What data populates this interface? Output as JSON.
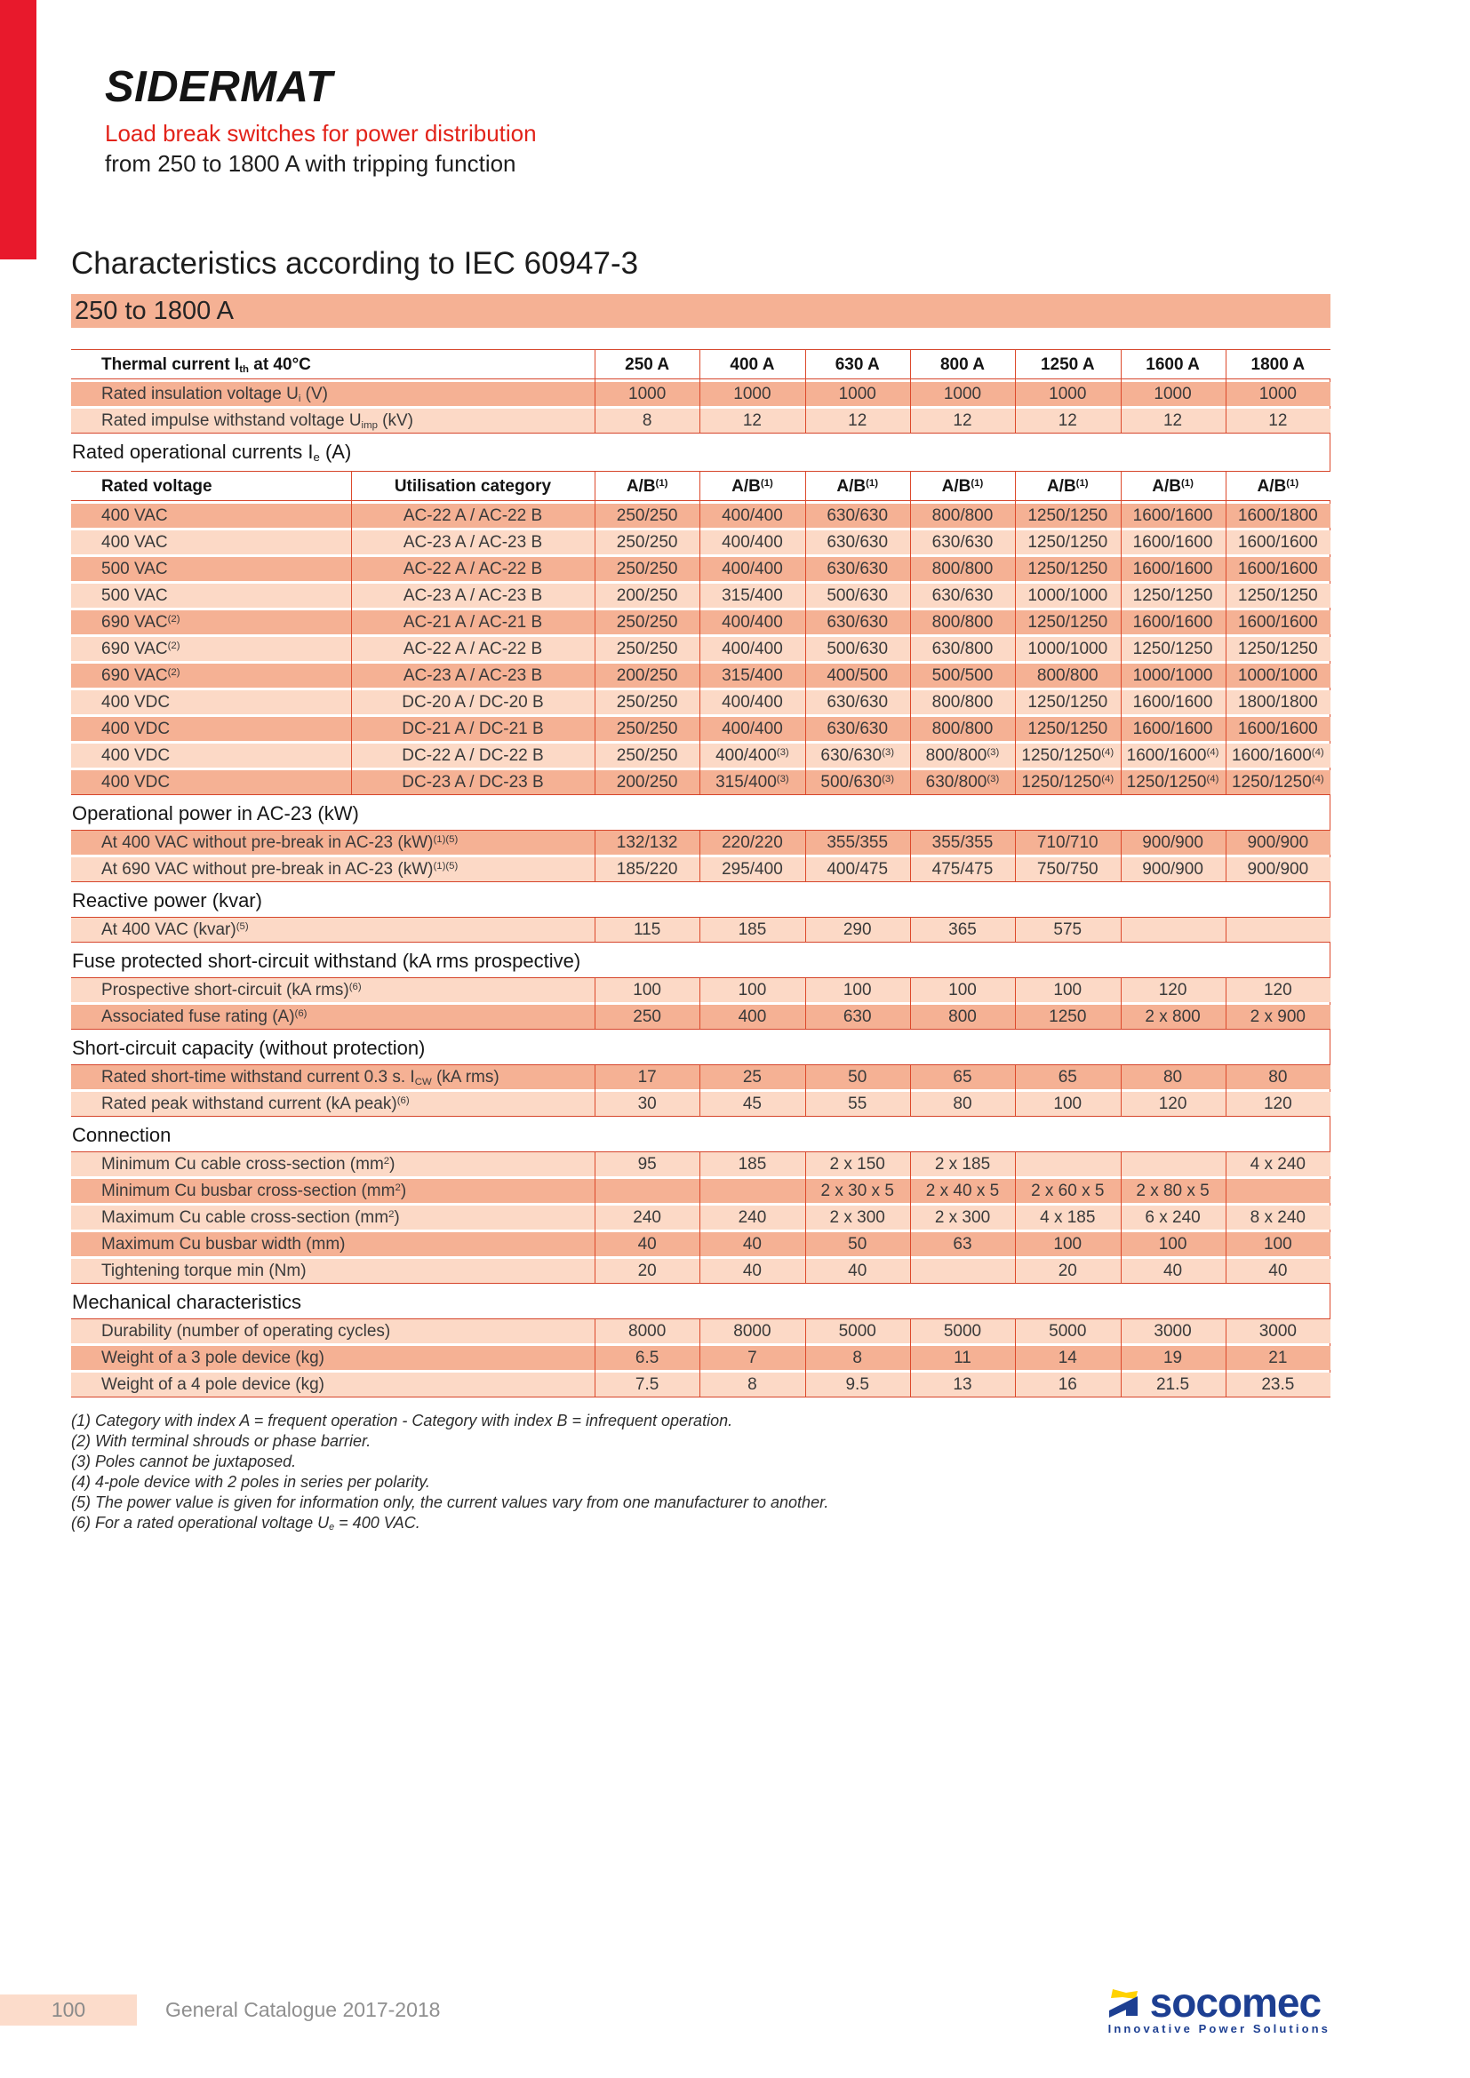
{
  "header": {
    "brand": "SIDERMAT",
    "tagline_red": "Load break switches for power distribution",
    "tagline_black": "from 250 to 1800 A with tripping function"
  },
  "title": "Characteristics according to IEC 60947-3",
  "range_banner": "250 to 1800 A",
  "colors": {
    "accent_red": "#e8192c",
    "text_red": "#e2231a",
    "row_dark": "#f5b194",
    "row_light": "#fcd9c6",
    "table_line_red": "#dd4a2c",
    "footer_pink": "#fcdccb",
    "footer_text_gray": "#8a8a8a",
    "logo_blue": "#1d3f92",
    "logo_yellow": "#ffd200"
  },
  "table": {
    "blocks": [
      {
        "heading_html": null,
        "two_label_cols": false,
        "head_row": {
          "label_html": "Thermal current I<sub>th</sub> at 40°C",
          "values": [
            "250 A",
            "400 A",
            "630 A",
            "800 A",
            "1250 A",
            "1600 A",
            "1800 A"
          ]
        },
        "rows": [
          {
            "shade": "dark",
            "label_html": "Rated insulation voltage U<sub>i</sub> (V)",
            "values": [
              "1000",
              "1000",
              "1000",
              "1000",
              "1000",
              "1000",
              "1000"
            ]
          },
          {
            "shade": "light",
            "label_html": "Rated impulse withstand voltage U<sub>imp</sub> (kV)",
            "values": [
              "8",
              "12",
              "12",
              "12",
              "12",
              "12",
              "12"
            ]
          }
        ]
      },
      {
        "heading_html": "Rated operational currents I<sub>e</sub> (A)",
        "two_label_cols": true,
        "head_row": {
          "label_html": "Rated voltage",
          "label2_html": "Utilisation category",
          "values": [
            "A/B<sup>(1)</sup>",
            "A/B<sup>(1)</sup>",
            "A/B<sup>(1)</sup>",
            "A/B<sup>(1)</sup>",
            "A/B<sup>(1)</sup>",
            "A/B<sup>(1)</sup>",
            "A/B<sup>(1)</sup>"
          ]
        },
        "rows": [
          {
            "shade": "dark",
            "label_html": "400 VAC",
            "label2_html": "AC-22 A / AC-22 B",
            "values": [
              "250/250",
              "400/400",
              "630/630",
              "800/800",
              "1250/1250",
              "1600/1600",
              "1600/1800"
            ]
          },
          {
            "shade": "light",
            "label_html": "400 VAC",
            "label2_html": "AC-23 A / AC-23 B",
            "values": [
              "250/250",
              "400/400",
              "630/630",
              "630/630",
              "1250/1250",
              "1600/1600",
              "1600/1600"
            ]
          },
          {
            "shade": "dark",
            "label_html": "500 VAC",
            "label2_html": "AC-22 A / AC-22 B",
            "values": [
              "250/250",
              "400/400",
              "630/630",
              "800/800",
              "1250/1250",
              "1600/1600",
              "1600/1600"
            ]
          },
          {
            "shade": "light",
            "label_html": "500 VAC",
            "label2_html": "AC-23 A / AC-23 B",
            "values": [
              "200/250",
              "315/400",
              "500/630",
              "630/630",
              "1000/1000",
              "1250/1250",
              "1250/1250"
            ]
          },
          {
            "shade": "dark",
            "label_html": "690 VAC<sup>(2)</sup>",
            "label2_html": "AC-21 A / AC-21 B",
            "values": [
              "250/250",
              "400/400",
              "630/630",
              "800/800",
              "1250/1250",
              "1600/1600",
              "1600/1600"
            ]
          },
          {
            "shade": "light",
            "label_html": "690 VAC<sup>(2)</sup>",
            "label2_html": "AC-22 A / AC-22 B",
            "values": [
              "250/250",
              "400/400",
              "500/630",
              "630/800",
              "1000/1000",
              "1250/1250",
              "1250/1250"
            ]
          },
          {
            "shade": "dark",
            "label_html": "690 VAC<sup>(2)</sup>",
            "label2_html": "AC-23 A / AC-23 B",
            "values": [
              "200/250",
              "315/400",
              "400/500",
              "500/500",
              "800/800",
              "1000/1000",
              "1000/1000"
            ]
          },
          {
            "shade": "light",
            "label_html": "400 VDC",
            "label2_html": "DC-20 A / DC-20 B",
            "values": [
              "250/250",
              "400/400",
              "630/630",
              "800/800",
              "1250/1250",
              "1600/1600",
              "1800/1800"
            ]
          },
          {
            "shade": "dark",
            "label_html": "400 VDC",
            "label2_html": "DC-21 A / DC-21 B",
            "values": [
              "250/250",
              "400/400",
              "630/630",
              "800/800",
              "1250/1250",
              "1600/1600",
              "1600/1600"
            ]
          },
          {
            "shade": "light",
            "label_html": "400 VDC",
            "label2_html": "DC-22 A / DC-22 B",
            "values": [
              "250/250",
              "400/400<sup>(3)</sup>",
              "630/630<sup>(3)</sup>",
              "800/800<sup>(3)</sup>",
              "1250/1250<sup>(4)</sup>",
              "1600/1600<sup>(4)</sup>",
              "1600/1600<sup>(4)</sup>"
            ]
          },
          {
            "shade": "dark",
            "label_html": "400 VDC",
            "label2_html": "DC-23 A / DC-23 B",
            "values": [
              "200/250",
              "315/400<sup>(3)</sup>",
              "500/630<sup>(3)</sup>",
              "630/800<sup>(3)</sup>",
              "1250/1250<sup>(4)</sup>",
              "1250/1250<sup>(4)</sup>",
              "1250/1250<sup>(4)</sup>"
            ]
          }
        ]
      },
      {
        "heading_html": "Operational power in AC-23 (kW)",
        "two_label_cols": false,
        "rows": [
          {
            "shade": "dark",
            "label_html": "At 400 VAC without pre-break in AC-23 (kW)<sup>(1)(5)</sup>",
            "values": [
              "132/132",
              "220/220",
              "355/355",
              "355/355",
              "710/710",
              "900/900",
              "900/900"
            ]
          },
          {
            "shade": "light",
            "label_html": "At 690 VAC without pre-break in AC-23 (kW)<sup>(1)(5)</sup>",
            "values": [
              "185/220",
              "295/400",
              "400/475",
              "475/475",
              "750/750",
              "900/900",
              "900/900"
            ]
          }
        ]
      },
      {
        "heading_html": "Reactive power (kvar)",
        "two_label_cols": false,
        "rows": [
          {
            "shade": "light",
            "label_html": "At 400 VAC (kvar)<sup>(5)</sup>",
            "values": [
              "115",
              "185",
              "290",
              "365",
              "575",
              "",
              ""
            ]
          }
        ]
      },
      {
        "heading_html": "Fuse protected short-circuit withstand (kA rms prospective)",
        "two_label_cols": false,
        "rows": [
          {
            "shade": "light",
            "label_html": "Prospective short-circuit (kA rms)<sup>(6)</sup>",
            "values": [
              "100",
              "100",
              "100",
              "100",
              "100",
              "120",
              "120"
            ]
          },
          {
            "shade": "dark",
            "label_html": "Associated fuse rating (A)<sup>(6)</sup>",
            "values": [
              "250",
              "400",
              "630",
              "800",
              "1250",
              "2 x 800",
              "2 x 900"
            ]
          }
        ]
      },
      {
        "heading_html": "Short-circuit capacity (without protection)",
        "two_label_cols": false,
        "rows": [
          {
            "shade": "dark",
            "label_html": "Rated short-time withstand current 0.3 s. I<sub>CW</sub> (kA rms)",
            "values": [
              "17",
              "25",
              "50",
              "65",
              "65",
              "80",
              "80"
            ]
          },
          {
            "shade": "light",
            "label_html": "Rated peak withstand current (kA peak)<sup>(6)</sup>",
            "values": [
              "30",
              "45",
              "55",
              "80",
              "100",
              "120",
              "120"
            ]
          }
        ]
      },
      {
        "heading_html": "Connection",
        "two_label_cols": false,
        "rows": [
          {
            "shade": "light",
            "label_html": "Minimum Cu cable cross-section (mm<sup>2</sup>)",
            "values": [
              "95",
              "185",
              "2 x 150",
              "2 x 185",
              "",
              "",
              "4 x 240"
            ]
          },
          {
            "shade": "dark",
            "label_html": "Minimum Cu busbar cross-section (mm<sup>2</sup>)",
            "values": [
              "",
              "",
              "2 x 30 x 5",
              "2 x 40 x 5",
              "2 x 60 x 5",
              "2 x 80 x 5",
              ""
            ]
          },
          {
            "shade": "light",
            "label_html": "Maximum Cu cable cross-section (mm<sup>2</sup>)",
            "values": [
              "240",
              "240",
              "2 x 300",
              "2 x 300",
              "4 x 185",
              "6 x 240",
              "8 x 240"
            ]
          },
          {
            "shade": "dark",
            "label_html": "Maximum Cu busbar width (mm)",
            "values": [
              "40",
              "40",
              "50",
              "63",
              "100",
              "100",
              "100"
            ]
          },
          {
            "shade": "light",
            "label_html": "Tightening torque min (Nm)",
            "values": [
              "20",
              "40",
              "40",
              "",
              "20",
              "40",
              "40"
            ]
          }
        ]
      },
      {
        "heading_html": "Mechanical characteristics",
        "two_label_cols": false,
        "rows": [
          {
            "shade": "light",
            "label_html": "Durability (number of operating cycles)",
            "values": [
              "8000",
              "8000",
              "5000",
              "5000",
              "5000",
              "3000",
              "3000"
            ]
          },
          {
            "shade": "dark",
            "label_html": "Weight of a 3 pole device (kg)",
            "values": [
              "6.5",
              "7",
              "8",
              "11",
              "14",
              "19",
              "21"
            ]
          },
          {
            "shade": "light",
            "label_html": "Weight of a 4 pole device (kg)",
            "values": [
              "7.5",
              "8",
              "9.5",
              "13",
              "16",
              "21.5",
              "23.5"
            ]
          }
        ]
      }
    ]
  },
  "footnotes": [
    "(1) Category with index A = frequent operation - Category with index B = infrequent operation.",
    "(2) With terminal shrouds or phase barrier.",
    "(3) Poles cannot be juxtaposed.",
    "(4) 4-pole device with 2 poles in series per polarity.",
    "(5) The power value is given for information only, the current values vary from one manufacturer to another.",
    "(6) For a rated operational voltage U<sub>e</sub> = 400 VAC."
  ],
  "footer": {
    "page_number": "100",
    "catalogue": "General Catalogue 2017-2018",
    "logo_wordmark": "socomec",
    "logo_tagline": "Innovative Power Solutions"
  }
}
